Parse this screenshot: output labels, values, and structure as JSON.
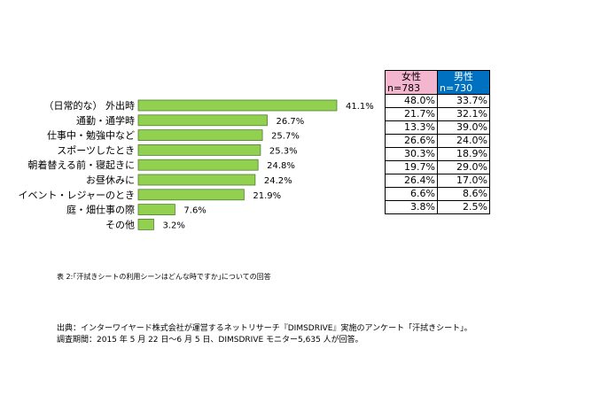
{
  "chart_data": {
    "type": "bar",
    "orientation": "horizontal",
    "categories": [
      "（日常的な） 外出時",
      "通勤・通学時",
      "仕事中・勉強中など",
      "スポーツしたとき",
      "朝着替える前・寝起きに",
      "お昼休みに",
      "イベント・レジャーのとき",
      "庭・畑仕事の際",
      "その他"
    ],
    "values": [
      41.1,
      26.7,
      25.7,
      25.3,
      24.8,
      24.2,
      21.9,
      7.6,
      3.2
    ],
    "value_labels": [
      "41.1%",
      "26.7%",
      "25.7%",
      "25.3%",
      "24.8%",
      "24.2%",
      "21.9%",
      "7.6%",
      "3.2%"
    ],
    "bar_color": "#92d050",
    "bar_stroke": "#507e32",
    "grid": false
  },
  "gender_table": {
    "female_header": "女性",
    "female_n": "n=783",
    "male_header": "男性",
    "male_n": "n=730",
    "female_color": "#f4b6cf",
    "male_color": "#0070c0",
    "rows": [
      [
        "48.0%",
        "33.7%"
      ],
      [
        "21.7%",
        "32.1%"
      ],
      [
        "13.3%",
        "39.0%"
      ],
      [
        "26.6%",
        "24.0%"
      ],
      [
        "30.3%",
        "18.9%"
      ],
      [
        "19.7%",
        "29.0%"
      ],
      [
        "26.4%",
        "17.0%"
      ],
      [
        "6.6%",
        "8.6%"
      ],
      [
        "3.8%",
        "2.5%"
      ]
    ]
  },
  "caption": "表 2:｢汗拭きシートの利用シーンはどんな時ですか｣についての回答",
  "source_line1": "出典：インターワイヤード株式会社が運営するネットリサーチ『DIMSDRIVE』実施のアンケート「汗拭きシート」。",
  "source_line2": "調査期間：2015 年 5 月 22 日～6 月 5 日、DIMSDRIVE モニター5,635 人が回答。"
}
